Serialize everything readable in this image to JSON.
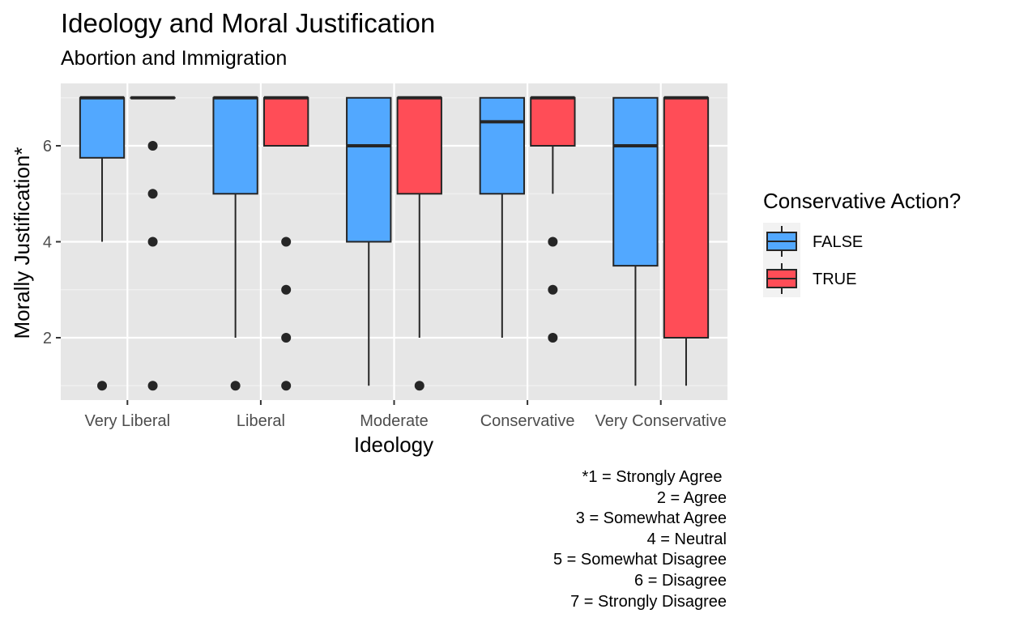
{
  "chart_data": {
    "type": "boxplot",
    "title": "Ideology and Moral Justification",
    "subtitle": "Abortion and Immigration",
    "xlabel": "Ideology",
    "ylabel": "Morally Justification*",
    "ylim": [
      0.7,
      7.3
    ],
    "yticks": [
      2,
      4,
      6
    ],
    "grid": true,
    "categories": [
      "Very Liberal",
      "Liberal",
      "Moderate",
      "Conservative",
      "Very Conservative"
    ],
    "legend": {
      "title": "Conservative Action?",
      "placement": "right",
      "entries": [
        {
          "label": "FALSE",
          "color": "#52a8ff"
        },
        {
          "label": "TRUE",
          "color": "#ff4d57"
        }
      ]
    },
    "series": [
      {
        "name": "FALSE",
        "color": "#52a8ff",
        "boxes": [
          {
            "lower_whisker": 4,
            "q1": 5.75,
            "median": 7,
            "q3": 7,
            "upper_whisker": 7,
            "outliers": [
              1
            ]
          },
          {
            "lower_whisker": 2,
            "q1": 5,
            "median": 7,
            "q3": 7,
            "upper_whisker": 7,
            "outliers": [
              1
            ]
          },
          {
            "lower_whisker": 1,
            "q1": 4,
            "median": 6,
            "q3": 7,
            "upper_whisker": 7,
            "outliers": []
          },
          {
            "lower_whisker": 2,
            "q1": 5,
            "median": 6.5,
            "q3": 7,
            "upper_whisker": 7,
            "outliers": []
          },
          {
            "lower_whisker": 1,
            "q1": 3.5,
            "median": 6,
            "q3": 7,
            "upper_whisker": 7,
            "outliers": []
          }
        ]
      },
      {
        "name": "TRUE",
        "color": "#ff4d57",
        "boxes": [
          {
            "lower_whisker": 7,
            "q1": 7,
            "median": 7,
            "q3": 7,
            "upper_whisker": 7,
            "outliers": [
              6,
              5,
              4,
              1
            ]
          },
          {
            "lower_whisker": 6,
            "q1": 6,
            "median": 7,
            "q3": 7,
            "upper_whisker": 7,
            "outliers": [
              4,
              3,
              2,
              1
            ]
          },
          {
            "lower_whisker": 2,
            "q1": 5,
            "median": 7,
            "q3": 7,
            "upper_whisker": 7,
            "outliers": [
              1
            ]
          },
          {
            "lower_whisker": 5,
            "q1": 6,
            "median": 7,
            "q3": 7,
            "upper_whisker": 7,
            "outliers": [
              4,
              3,
              2
            ]
          },
          {
            "lower_whisker": 1,
            "q1": 2,
            "median": 7,
            "q3": 7,
            "upper_whisker": 7,
            "outliers": []
          }
        ]
      }
    ],
    "caption": [
      "*1 = Strongly Agree ",
      "2 = Agree",
      "3 = Somewhat Agree",
      "4 = Neutral",
      "5 = Somewhat Disagree",
      "6 = Disagree",
      "7 = Strongly Disagree"
    ]
  }
}
